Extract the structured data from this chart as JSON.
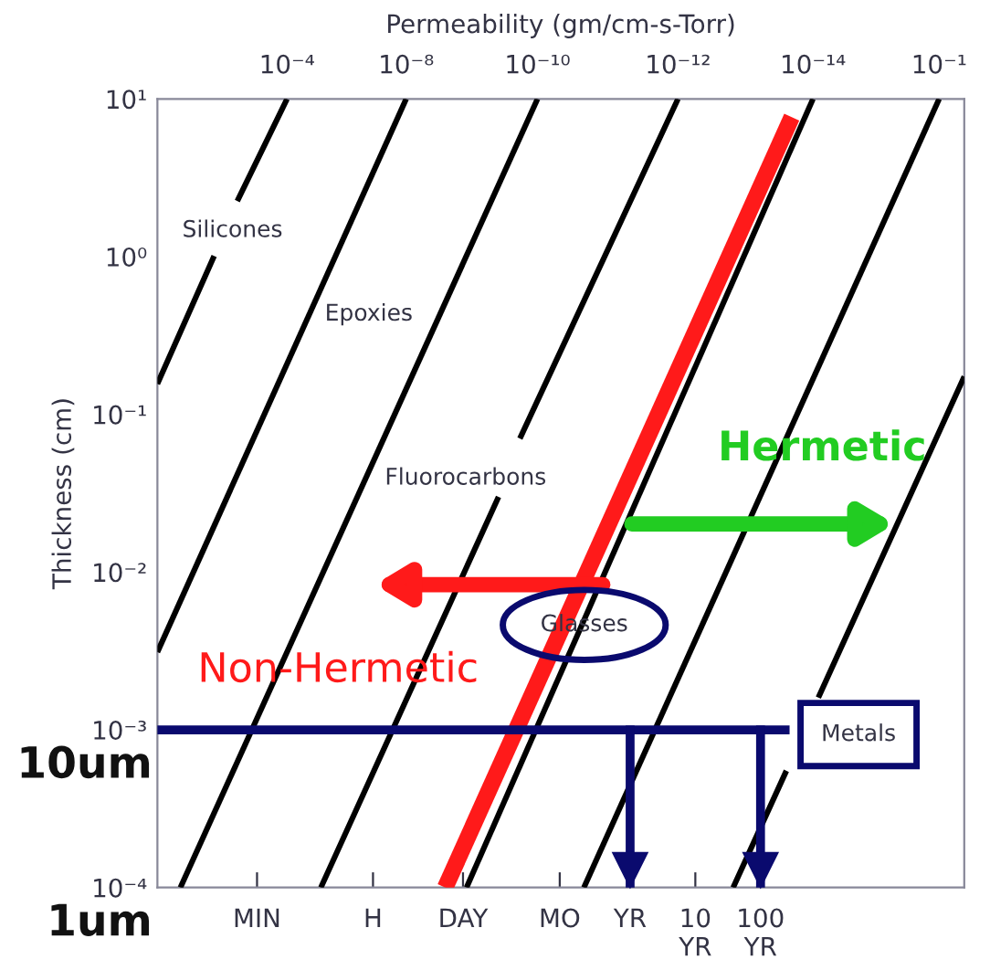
{
  "chart_data": {
    "type": "line",
    "title": "Permeability (gm/cm-s-Torr)",
    "ylabel": "Thickness (cm)",
    "log": "xy",
    "xlim": [
      5.64e-08,
      133000
    ],
    "ylim": [
      0.0001,
      10
    ],
    "xticks": [
      {
        "value": 1.901e-06,
        "label": "MIN"
      },
      {
        "value": 0.0001141,
        "label": "H"
      },
      {
        "value": 0.002738,
        "label": "DAY"
      },
      {
        "value": 0.0833,
        "label": "MO"
      },
      {
        "value": 1,
        "label": "YR"
      },
      {
        "value": 10,
        "label": "10\nYR"
      },
      {
        "value": 100,
        "label": "100\nYR"
      }
    ],
    "yticks": [
      {
        "value": 10,
        "label": "10¹"
      },
      {
        "value": 1,
        "label": "10⁰"
      },
      {
        "value": 0.1,
        "label": "10⁻¹"
      },
      {
        "value": 0.01,
        "label": "10⁻²"
      },
      {
        "value": 0.001,
        "label": "10⁻³"
      },
      {
        "value": 0.0001,
        "label": "10⁻⁴"
      }
    ],
    "grid": false,
    "series": [
      {
        "name": "10⁻⁴",
        "color": "#000000",
        "x": [
          5.48e-06,
          9.47e-07,
          null,
          4.18e-07,
          5.64e-08
        ],
        "values": [
          10,
          2.25,
          null,
          1.01,
          0.156
        ]
      },
      {
        "name": "10⁻⁸",
        "color": "#000000",
        "x": [
          0.000368,
          5.64e-08
        ],
        "values": [
          10,
          0.00311
        ]
      },
      {
        "name": "10⁻¹⁰",
        "color": "#000000",
        "x": [
          0.038,
          1.27e-07
        ],
        "values": [
          10,
          0.0001
        ]
      },
      {
        "name": "10⁻¹²",
        "color": "#000000",
        "x": [
          5.42,
          0.0204,
          null,
          0.0096,
          1.81e-05
        ],
        "values": [
          10,
          0.0703,
          null,
          0.03,
          0.0001
        ]
      },
      {
        "name": "10⁻¹⁴",
        "color": "#000000",
        "x": [
          637,
          0.0031
        ],
        "values": [
          10,
          0.0001
        ]
      },
      {
        "name": "10⁻¹",
        "color": "#000000",
        "x": [
          54800,
          0.1955
        ],
        "values": [
          10,
          0.0001
        ]
      },
      {
        "color": "#000000",
        "x": [
          38.0,
          249,
          null,
          770,
          133000
        ],
        "values": [
          0.0001,
          0.00055,
          null,
          0.0016,
          0.174
        ]
      },
      {
        "color": "#ff1a1a",
        "x": [
          301,
          0.00146
        ],
        "values": [
          7.66,
          0.0001
        ]
      }
    ],
    "ref_lines": [
      {
        "axis": "y",
        "value": 0.001,
        "label": "10um",
        "color": "#0a0a6e"
      },
      {
        "axis": "x",
        "value": 1,
        "color": "#0a0a6e"
      },
      {
        "axis": "x",
        "value": 100,
        "color": "#0a0a6e"
      }
    ],
    "annotations": [
      "Silicones",
      "Epoxies",
      "Fluorocarbons",
      "Glasses",
      "Metals",
      "Hermetic",
      "Non-Hermetic",
      "1um"
    ]
  }
}
